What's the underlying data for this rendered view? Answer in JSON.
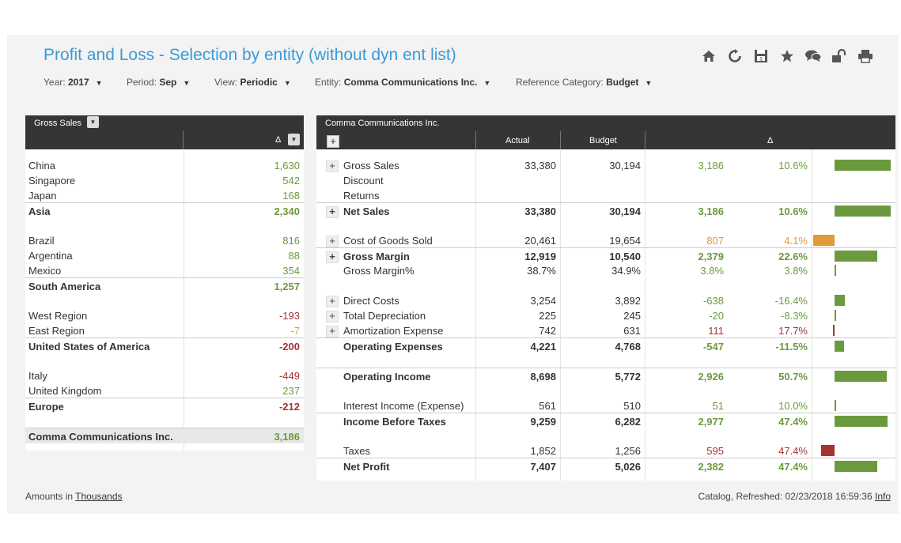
{
  "page": {
    "title": "Profit and Loss - Selection by entity (without dyn ent list)"
  },
  "filters": [
    {
      "label": "Year:",
      "value": "2017"
    },
    {
      "label": "Period:",
      "value": "Sep"
    },
    {
      "label": "View:",
      "value": "Periodic"
    },
    {
      "label": "Entity:",
      "value": "Comma Communications Inc."
    },
    {
      "label": "Reference Category:",
      "value": "Budget"
    }
  ],
  "toolbar_icons": [
    "home-icon",
    "refresh-icon",
    "save-icon",
    "star-icon",
    "comments-icon",
    "unlock-icon",
    "print-icon"
  ],
  "left_panel": {
    "header": "Gross Sales",
    "delta_label": "Δ",
    "rows": [
      {
        "name": "China",
        "value": "1,630",
        "tone": "green",
        "total": false
      },
      {
        "name": "Singapore",
        "value": "542",
        "tone": "green",
        "total": false
      },
      {
        "name": "Japan",
        "value": "168",
        "tone": "green",
        "total": false
      },
      {
        "name": "Asia",
        "value": "2,340",
        "tone": "green",
        "total": true,
        "gap_after": true
      },
      {
        "name": "Brazil",
        "value": "816",
        "tone": "green",
        "total": false
      },
      {
        "name": "Argentina",
        "value": "88",
        "tone": "green",
        "total": false
      },
      {
        "name": "Mexico",
        "value": "354",
        "tone": "green",
        "total": false
      },
      {
        "name": "South America",
        "value": "1,257",
        "tone": "green",
        "total": true,
        "gap_after": true
      },
      {
        "name": "West Region",
        "value": "-193",
        "tone": "red",
        "total": false
      },
      {
        "name": "East Region",
        "value": "-7",
        "tone": "orange",
        "total": false
      },
      {
        "name": "United States of America",
        "value": "-200",
        "tone": "red",
        "total": true,
        "gap_after": true
      },
      {
        "name": "Italy",
        "value": "-449",
        "tone": "red",
        "total": false
      },
      {
        "name": "United Kingdom",
        "value": "237",
        "tone": "green",
        "total": false
      },
      {
        "name": "Europe",
        "value": "-212",
        "tone": "red",
        "total": true,
        "gap_after": true
      },
      {
        "name": "Comma Communications Inc.",
        "value": "3,186",
        "tone": "green",
        "total": true,
        "grand": true
      }
    ]
  },
  "right_panel": {
    "header": "Comma Communications Inc.",
    "columns": {
      "actual": "Actual",
      "budget": "Budget",
      "delta": "Δ"
    },
    "rows": [
      {
        "name": "Gross Sales",
        "actual": "33,380",
        "budget": "30,194",
        "diff": "3,186",
        "pct": "10.6%",
        "tone": "green",
        "bar": 10.6,
        "expand": true,
        "bold": false
      },
      {
        "name": "Discount",
        "actual": "",
        "budget": "",
        "diff": "",
        "pct": "",
        "tone": "green",
        "bar": 0,
        "expand": false,
        "bold": false
      },
      {
        "name": "Returns",
        "actual": "",
        "budget": "",
        "diff": "",
        "pct": "",
        "tone": "green",
        "bar": 0,
        "expand": false,
        "bold": false
      },
      {
        "name": "Net Sales",
        "actual": "33,380",
        "budget": "30,194",
        "diff": "3,186",
        "pct": "10.6%",
        "tone": "green",
        "bar": 10.6,
        "expand": true,
        "bold": true,
        "gap_after": true
      },
      {
        "name": "Cost of Goods Sold",
        "actual": "20,461",
        "budget": "19,654",
        "diff": "807",
        "pct": "4.1%",
        "tone": "orange",
        "bar": -4.1,
        "expand": true,
        "bold": false
      },
      {
        "name": "Gross Margin",
        "actual": "12,919",
        "budget": "10,540",
        "diff": "2,379",
        "pct": "22.6%",
        "tone": "green",
        "bar": 8.0,
        "expand": true,
        "bold": true
      },
      {
        "name": "Gross Margin%",
        "actual": "38.7%",
        "budget": "34.9%",
        "diff": "3.8%",
        "pct": "3.8%",
        "tone": "green",
        "bar": 0.2,
        "expand": false,
        "bold": false,
        "gap_after": true
      },
      {
        "name": "Direct Costs",
        "actual": "3,254",
        "budget": "3,892",
        "diff": "-638",
        "pct": "-16.4%",
        "tone": "green",
        "bar": 2.0,
        "expand": true,
        "bold": false
      },
      {
        "name": "Total Depreciation",
        "actual": "225",
        "budget": "245",
        "diff": "-20",
        "pct": "-8.3%",
        "tone": "green",
        "bar": 0.2,
        "expand": true,
        "bold": false
      },
      {
        "name": "Amortization Expense",
        "actual": "742",
        "budget": "631",
        "diff": "111",
        "pct": "17.7%",
        "tone": "red",
        "bar": -0.3,
        "expand": true,
        "bold": false
      },
      {
        "name": "Operating Expenses",
        "actual": "4,221",
        "budget": "4,768",
        "diff": "-547",
        "pct": "-11.5%",
        "tone": "green",
        "bar": 1.8,
        "expand": false,
        "bold": true,
        "gap_after": true
      },
      {
        "name": "Operating Income",
        "actual": "8,698",
        "budget": "5,772",
        "diff": "2,926",
        "pct": "50.7%",
        "tone": "green",
        "bar": 9.8,
        "expand": false,
        "bold": true,
        "gap_after": true
      },
      {
        "name": "Interest Income (Expense)",
        "actual": "561",
        "budget": "510",
        "diff": "51",
        "pct": "10.0%",
        "tone": "green",
        "bar": 0.2,
        "expand": false,
        "bold": false
      },
      {
        "name": "Income Before Taxes",
        "actual": "9,259",
        "budget": "6,282",
        "diff": "2,977",
        "pct": "47.4%",
        "tone": "green",
        "bar": 10.0,
        "expand": false,
        "bold": true,
        "gap_after": true
      },
      {
        "name": "Taxes",
        "actual": "1,852",
        "budget": "1,256",
        "diff": "595",
        "pct": "47.4%",
        "tone": "red",
        "bar": -2.5,
        "expand": false,
        "bold": false
      },
      {
        "name": "Net Profit",
        "actual": "7,407",
        "budget": "5,026",
        "diff": "2,382",
        "pct": "47.4%",
        "tone": "green",
        "bar": 8.0,
        "expand": false,
        "bold": true
      }
    ]
  },
  "footer": {
    "amounts_prefix": "Amounts in",
    "amounts_unit": "Thousands",
    "refreshed": "Catalog, Refreshed: 02/23/2018 16:59:36",
    "info": "Info"
  },
  "colors": {
    "title": "#3a9ad9",
    "header_bg": "#353535",
    "positive": "#6b9a3e",
    "negative": "#a83232",
    "warning": "#e09a3a"
  }
}
